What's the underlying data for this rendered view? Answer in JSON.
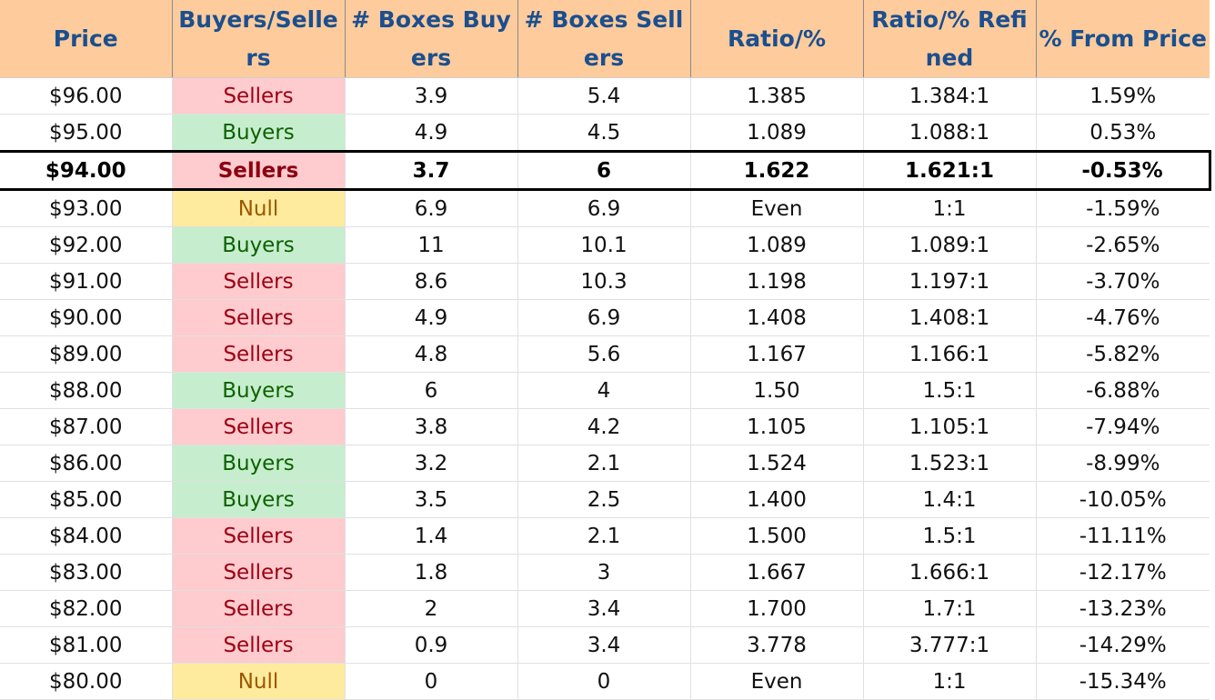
{
  "columns": [
    "Price",
    "Buyers/Sellers",
    "# Boxes Buyers",
    "# Boxes Sellers",
    "Ratio/%",
    "Ratio/% Refined",
    "% From Price"
  ],
  "current_row_index": 2,
  "colors": {
    "header_bg": "#fecc9c",
    "header_text": "#1b4f8f",
    "sellers_bg": "#fecbcf",
    "sellers_text": "#9c0011",
    "buyers_bg": "#c6eece",
    "buyers_text": "#0d6100",
    "null_bg": "#feeb9d",
    "null_text": "#9c5700"
  },
  "rows": [
    {
      "price": "$96.00",
      "side": "Sellers",
      "buyers": "3.9",
      "sellers": "5.4",
      "ratio": "1.385",
      "refined": "1.384:1",
      "from_price": "1.59%"
    },
    {
      "price": "$95.00",
      "side": "Buyers",
      "buyers": "4.9",
      "sellers": "4.5",
      "ratio": "1.089",
      "refined": "1.088:1",
      "from_price": "0.53%"
    },
    {
      "price": "$94.00",
      "side": "Sellers",
      "buyers": "3.7",
      "sellers": "6",
      "ratio": "1.622",
      "refined": "1.621:1",
      "from_price": "-0.53%"
    },
    {
      "price": "$93.00",
      "side": "Null",
      "buyers": "6.9",
      "sellers": "6.9",
      "ratio": "Even",
      "refined": "1:1",
      "from_price": "-1.59%"
    },
    {
      "price": "$92.00",
      "side": "Buyers",
      "buyers": "11",
      "sellers": "10.1",
      "ratio": "1.089",
      "refined": "1.089:1",
      "from_price": "-2.65%"
    },
    {
      "price": "$91.00",
      "side": "Sellers",
      "buyers": "8.6",
      "sellers": "10.3",
      "ratio": "1.198",
      "refined": "1.197:1",
      "from_price": "-3.70%"
    },
    {
      "price": "$90.00",
      "side": "Sellers",
      "buyers": "4.9",
      "sellers": "6.9",
      "ratio": "1.408",
      "refined": "1.408:1",
      "from_price": "-4.76%"
    },
    {
      "price": "$89.00",
      "side": "Sellers",
      "buyers": "4.8",
      "sellers": "5.6",
      "ratio": "1.167",
      "refined": "1.166:1",
      "from_price": "-5.82%"
    },
    {
      "price": "$88.00",
      "side": "Buyers",
      "buyers": "6",
      "sellers": "4",
      "ratio": "1.50",
      "refined": "1.5:1",
      "from_price": "-6.88%"
    },
    {
      "price": "$87.00",
      "side": "Sellers",
      "buyers": "3.8",
      "sellers": "4.2",
      "ratio": "1.105",
      "refined": "1.105:1",
      "from_price": "-7.94%"
    },
    {
      "price": "$86.00",
      "side": "Buyers",
      "buyers": "3.2",
      "sellers": "2.1",
      "ratio": "1.524",
      "refined": "1.523:1",
      "from_price": "-8.99%"
    },
    {
      "price": "$85.00",
      "side": "Buyers",
      "buyers": "3.5",
      "sellers": "2.5",
      "ratio": "1.400",
      "refined": "1.4:1",
      "from_price": "-10.05%"
    },
    {
      "price": "$84.00",
      "side": "Sellers",
      "buyers": "1.4",
      "sellers": "2.1",
      "ratio": "1.500",
      "refined": "1.5:1",
      "from_price": "-11.11%"
    },
    {
      "price": "$83.00",
      "side": "Sellers",
      "buyers": "1.8",
      "sellers": "3",
      "ratio": "1.667",
      "refined": "1.666:1",
      "from_price": "-12.17%"
    },
    {
      "price": "$82.00",
      "side": "Sellers",
      "buyers": "2",
      "sellers": "3.4",
      "ratio": "1.700",
      "refined": "1.7:1",
      "from_price": "-13.23%"
    },
    {
      "price": "$81.00",
      "side": "Sellers",
      "buyers": "0.9",
      "sellers": "3.4",
      "ratio": "3.778",
      "refined": "3.777:1",
      "from_price": "-14.29%"
    },
    {
      "price": "$80.00",
      "side": "Null",
      "buyers": "0",
      "sellers": "0",
      "ratio": "Even",
      "refined": "1:1",
      "from_price": "-15.34%"
    }
  ]
}
